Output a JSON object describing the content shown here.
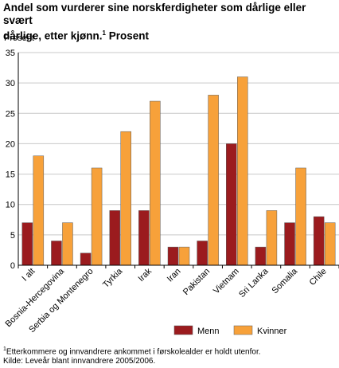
{
  "title": {
    "line1": "Andel som vurderer sine norskferdigheter som dårlige eller svært",
    "line2": "dårlige, etter kjønn.",
    "note_mark": "1",
    "line2_end": " Prosent"
  },
  "footnotes": {
    "note_mark": "1",
    "note1": "Etterkommere og innvandrere ankommet i førskolealder er holdt utenfor.",
    "source": "Kilde: Leveår blant innvandrere 2005/2006."
  },
  "chart_data": {
    "type": "bar",
    "ylabel": "Prosent",
    "ylim": [
      0,
      35
    ],
    "yticks": [
      0,
      5,
      10,
      15,
      20,
      25,
      30,
      35
    ],
    "grid": true,
    "legend_position": "bottom",
    "categories": [
      "I alt",
      "Bosnia-Hercegovina",
      "Serbia og Montenegro",
      "Tyrkia",
      "Irak",
      "Iran",
      "Pakistan",
      "Vietnam",
      "Sri Lanka",
      "Somalia",
      "Chile"
    ],
    "series": [
      {
        "name": "Menn",
        "color": "#9b1b1e",
        "values": [
          7,
          4,
          2,
          9,
          9,
          3,
          4,
          20,
          3,
          7,
          8
        ]
      },
      {
        "name": "Kvinner",
        "color": "#f7a13a",
        "values": [
          18,
          7,
          16,
          22,
          27,
          3,
          28,
          31,
          9,
          16,
          7
        ]
      }
    ]
  }
}
